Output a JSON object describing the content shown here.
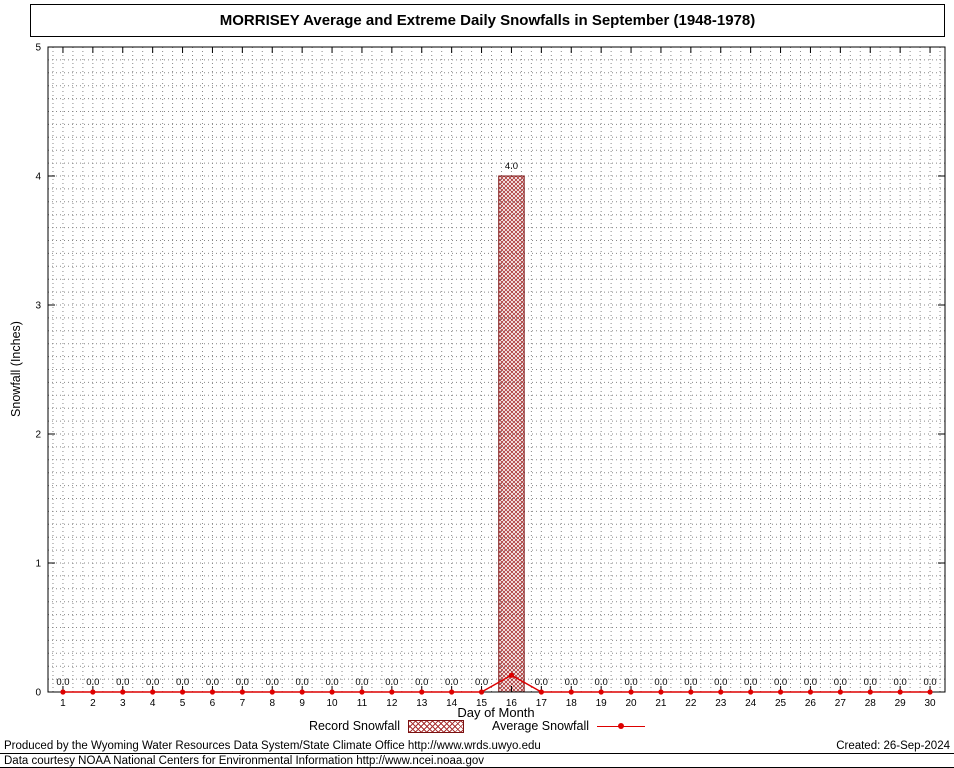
{
  "title": "MORRISEY Average and Extreme Daily Snowfalls in September (1948-1978)",
  "chart_data": {
    "type": "bar",
    "title": "MORRISEY Average and Extreme Daily Snowfalls in September (1948-1978)",
    "xlabel": "Day of Month",
    "ylabel": "Snowfall (Inches)",
    "ylim": [
      0,
      5
    ],
    "yticks": [
      0,
      1,
      2,
      3,
      4,
      5
    ],
    "grid": true,
    "legend_position": "bottom",
    "categories": [
      1,
      2,
      3,
      4,
      5,
      6,
      7,
      8,
      9,
      10,
      11,
      12,
      13,
      14,
      15,
      16,
      17,
      18,
      19,
      20,
      21,
      22,
      23,
      24,
      25,
      26,
      27,
      28,
      29,
      30
    ],
    "series": [
      {
        "name": "Record Snowfall",
        "type": "bar",
        "values": [
          0,
          0,
          0,
          0,
          0,
          0,
          0,
          0,
          0,
          0,
          0,
          0,
          0,
          0,
          0,
          4.0,
          0,
          0,
          0,
          0,
          0,
          0,
          0,
          0,
          0,
          0,
          0,
          0,
          0,
          0
        ]
      },
      {
        "name": "Average Snowfall",
        "type": "line",
        "values": [
          0,
          0,
          0,
          0,
          0,
          0,
          0,
          0,
          0,
          0,
          0,
          0,
          0,
          0,
          0,
          0.13,
          0,
          0,
          0,
          0,
          0,
          0,
          0,
          0,
          0,
          0,
          0,
          0,
          0,
          0
        ]
      }
    ],
    "bar_labels": [
      "0.0",
      "0.0",
      "0.0",
      "0.0",
      "0.0",
      "0.0",
      "0.0",
      "0.0",
      "0.0",
      "0.0",
      "0.0",
      "0.0",
      "0.0",
      "0.0",
      "0.0",
      "4.0",
      "0.0",
      "0.0",
      "0.0",
      "0.0",
      "0.0",
      "0.0",
      "0.0",
      "0.0",
      "0.0",
      "0.0",
      "0.0",
      "0.0",
      "0.0",
      "0.0"
    ]
  },
  "legend": {
    "record_label": "Record Snowfall",
    "average_label": "Average Snowfall"
  },
  "footer": {
    "line1": "Produced by the Wyoming Water Resources Data System/State Climate Office http://www.wrds.uwyo.edu",
    "line2": "Data courtesy NOAA National Centers for Environmental Information http://www.ncei.noaa.gov",
    "created": "Created: 26-Sep-2024"
  },
  "colors": {
    "bar_hatch": "#aa3333",
    "bar_border": "#7a1111",
    "line": "#dd0000",
    "grid": "#888888"
  }
}
